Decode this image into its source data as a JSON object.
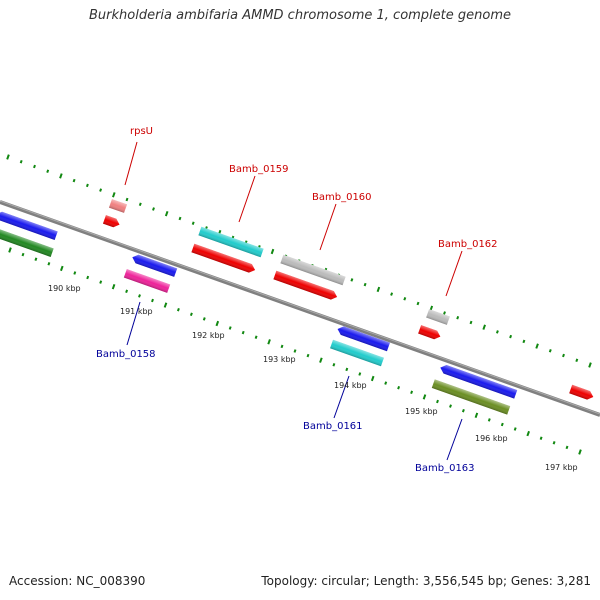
{
  "title": "Burkholderia ambifaria AMMD chromosome 1, complete genome",
  "accession": "Accession: NC_008390",
  "topology": "Topology: circular; Length: 3,556,545 bp; Genes: 3,281",
  "scale_labels": [
    "190 kbp",
    "191 kbp",
    "192 kbp",
    "193 kbp",
    "194 kbp",
    "195 kbp",
    "196 kbp",
    "197 kbp"
  ],
  "gene_labels": [
    {
      "name": "rpsU",
      "strand": "forward",
      "color": "#cc0000"
    },
    {
      "name": "Bamb_0159",
      "strand": "forward",
      "color": "#cc0000"
    },
    {
      "name": "Bamb_0160",
      "strand": "forward",
      "color": "#cc0000"
    },
    {
      "name": "Bamb_0162",
      "strand": "forward",
      "color": "#cc0000"
    },
    {
      "name": "Bamb_0158",
      "strand": "reverse",
      "color": "#000099"
    },
    {
      "name": "Bamb_0161",
      "strand": "reverse",
      "color": "#000099"
    },
    {
      "name": "Bamb_0163",
      "strand": "reverse",
      "color": "#000099"
    }
  ],
  "colors": {
    "backbone": "#808080",
    "ticks": "#118811",
    "cds": "#ee0000",
    "blue": "#1a1aee",
    "green": "#228822",
    "olive": "#6b8e23",
    "cyan": "#22cccc",
    "grey": "#bbbbbb",
    "magenta": "#ee2299",
    "salmon": "#f08080"
  }
}
